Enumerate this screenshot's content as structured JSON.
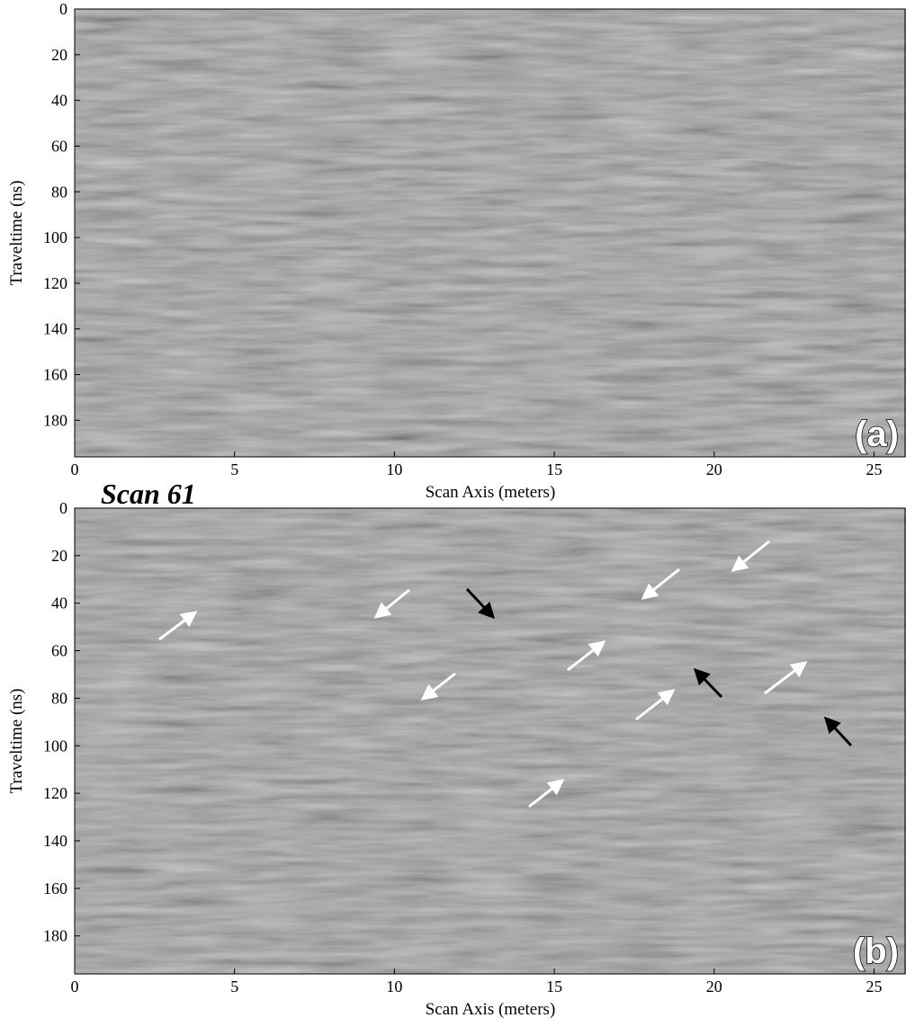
{
  "chart_data": [
    {
      "type": "image",
      "xlabel": "Scan Axis (meters)",
      "ylabel": "Traveltime (ns)",
      "xlim": [
        0,
        26
      ],
      "ylim": [
        0,
        196
      ],
      "xticks": [
        0,
        5,
        10,
        15,
        20,
        25
      ],
      "yticks": [
        0,
        20,
        40,
        60,
        80,
        100,
        120,
        140,
        160,
        180
      ],
      "panel_label": "(a)"
    },
    {
      "type": "image",
      "xlabel": "Scan Axis (meters)",
      "ylabel": "Traveltime (ns)",
      "xlim": [
        0,
        26
      ],
      "ylim": [
        0,
        196
      ],
      "xticks": [
        0,
        5,
        10,
        15,
        20,
        25
      ],
      "yticks": [
        0,
        20,
        40,
        60,
        80,
        100,
        120,
        140,
        160,
        180
      ],
      "panel_label": "(b)",
      "annotation": "Scan 61"
    }
  ]
}
